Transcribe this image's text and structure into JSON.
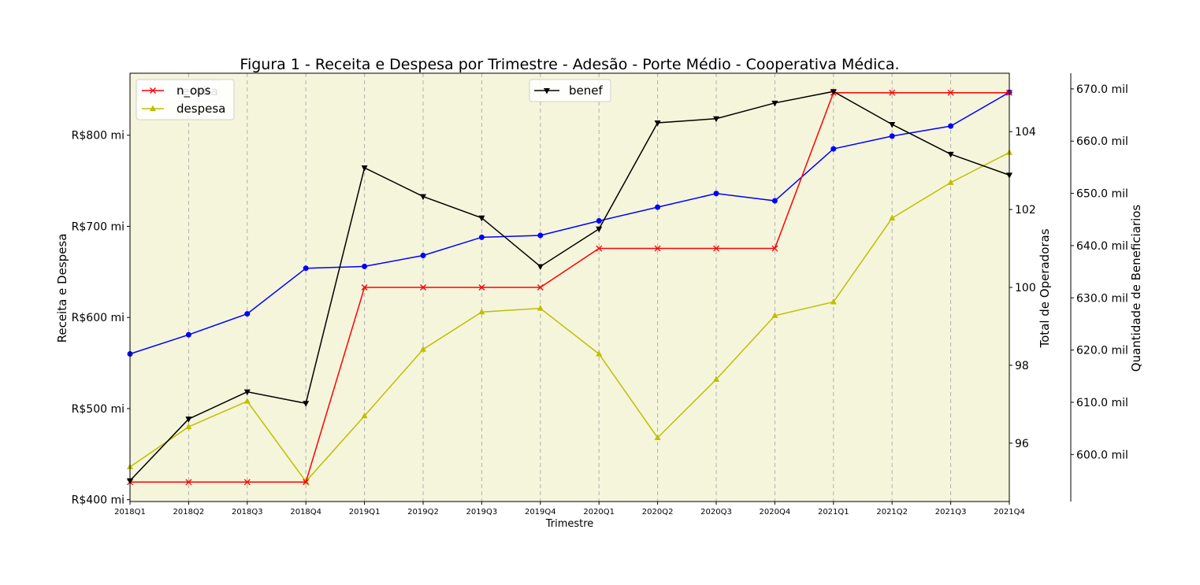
{
  "chart_data": {
    "type": "line",
    "title": "Figura 1 - Receita e Despesa por Trimestre - Adesão - Porte Médio - Cooperativa Médica.",
    "xlabel": "Trimestre",
    "categories": [
      "2018Q1",
      "2018Q2",
      "2018Q3",
      "2018Q4",
      "2019Q1",
      "2019Q2",
      "2019Q3",
      "2019Q4",
      "2020Q1",
      "2020Q2",
      "2020Q3",
      "2020Q4",
      "2021Q1",
      "2021Q2",
      "2021Q3",
      "2021Q4"
    ],
    "axes": {
      "left": {
        "label": "Receita e Despesa",
        "ylim": [
          398,
          868
        ],
        "ticks": [
          400,
          500,
          600,
          700,
          800
        ],
        "tick_labels": [
          "R$400 mi",
          "R$500 mi",
          "R$600 mi",
          "R$700 mi",
          "R$800 mi"
        ]
      },
      "right1": {
        "label": "Total de Operadoras",
        "ylim": [
          94.5,
          105.5
        ],
        "ticks": [
          96,
          98,
          100,
          102,
          104
        ],
        "tick_labels": [
          "96",
          "98",
          "100",
          "102",
          "104"
        ]
      },
      "right2": {
        "label": "Quantidade de Beneficiarios",
        "ylim": [
          591.0,
          673.0
        ],
        "ticks": [
          600,
          610,
          620,
          630,
          640,
          650,
          660,
          670
        ],
        "tick_labels": [
          "600.0 mil",
          "610.0 mil",
          "620.0 mil",
          "630.0 mil",
          "640.0 mil",
          "650.0 mil",
          "660.0 mil",
          "670.0 mil"
        ]
      }
    },
    "series": [
      {
        "name": "receita",
        "axis": "left",
        "color": "#0000ff",
        "marker": "circle",
        "values": [
          560,
          581,
          604,
          654,
          656,
          668,
          688,
          690,
          706,
          721,
          736,
          728,
          785,
          799,
          810,
          847
        ]
      },
      {
        "name": "despesa",
        "axis": "left",
        "color": "#bfbf00",
        "marker": "triangle-up",
        "values": [
          436,
          480,
          508,
          420,
          492,
          565,
          606,
          610,
          560,
          468,
          532,
          602,
          617,
          709,
          748,
          781
        ]
      },
      {
        "name": "n_ops",
        "axis": "right1",
        "color": "#ff0000",
        "marker": "x",
        "values": [
          95,
          95,
          95,
          95,
          100,
          100,
          100,
          100,
          101,
          101,
          101,
          101,
          105,
          105,
          105,
          105
        ]
      },
      {
        "name": "benef",
        "axis": "right2",
        "color": "#000000",
        "marker": "triangle-down",
        "values": [
          595.0,
          606.8,
          612.0,
          609.8,
          654.9,
          649.4,
          645.3,
          636.0,
          643.2,
          663.5,
          664.3,
          667.3,
          669.5,
          663.2,
          657.5,
          653.5
        ]
      }
    ],
    "legends": [
      {
        "position": "top-left",
        "entries": [
          "n_ops",
          "despesa"
        ],
        "hidden_entry": "receita"
      },
      {
        "position": "top-center",
        "entries": [
          "benef"
        ]
      }
    ],
    "grid": {
      "x": true,
      "y": false
    },
    "background": "#f5f5dc"
  }
}
